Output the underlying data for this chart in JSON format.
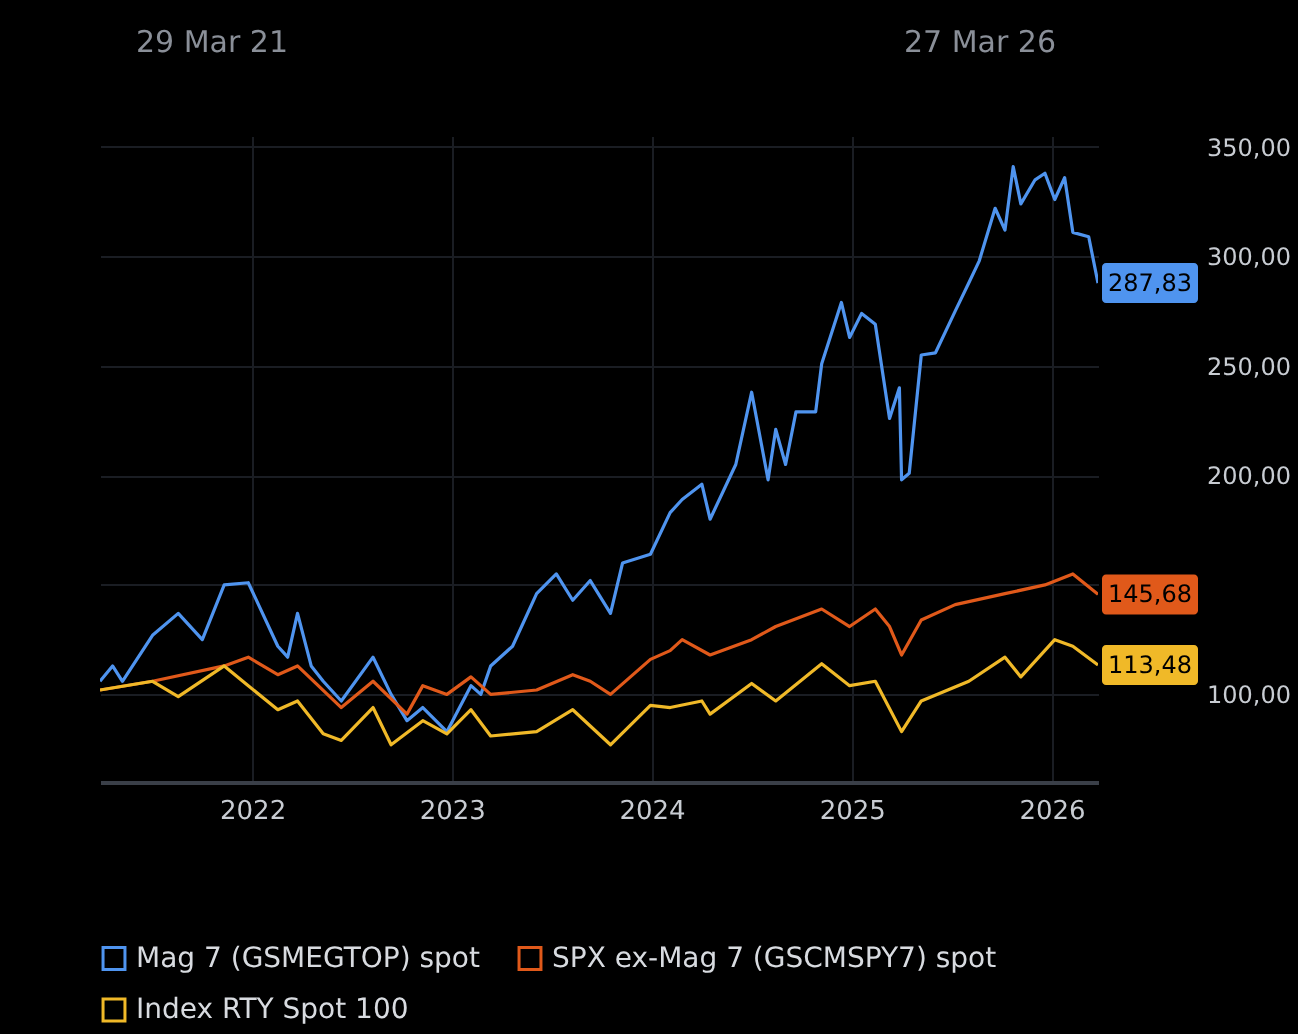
{
  "chart_data": {
    "type": "line",
    "annotations": [
      "29 Mar 21",
      "27 Mar 26"
    ],
    "xlim": [
      "2021-03-29",
      "2026-03-27"
    ],
    "xticks": [
      "2022",
      "2023",
      "2024",
      "2025",
      "2026"
    ],
    "ylim": [
      60,
      355
    ],
    "yticks": [
      {
        "value": 100,
        "label": "100,00"
      },
      {
        "value": 150,
        "label": null
      },
      {
        "value": 200,
        "label": "200,00"
      },
      {
        "value": 250,
        "label": "250,00"
      },
      {
        "value": 300,
        "label": "300,00"
      },
      {
        "value": 350,
        "label": "350,00"
      }
    ],
    "grid": true,
    "legend": "bottom",
    "marker": "none",
    "line_style": "solid",
    "series": [
      {
        "name": "Mag 7 (GSMEGTOP) spot",
        "color": "#4f94ef",
        "x": [
          "2021-03-29",
          "2021-04-21",
          "2021-05-09",
          "2021-07-03",
          "2021-08-19",
          "2021-10-02",
          "2021-11-11",
          "2021-12-25",
          "2022-02-17",
          "2022-03-07",
          "2022-03-25",
          "2022-04-19",
          "2022-05-11",
          "2022-06-13",
          "2022-08-10",
          "2022-09-12",
          "2022-10-11",
          "2022-11-09",
          "2022-12-23",
          "2023-02-05",
          "2023-02-23",
          "2023-03-13",
          "2023-04-22",
          "2023-06-05",
          "2023-07-11",
          "2023-08-10",
          "2023-09-11",
          "2023-10-18",
          "2023-11-09",
          "2023-12-30",
          "2024-02-04",
          "2024-02-26",
          "2024-04-02",
          "2024-04-17",
          "2024-06-03",
          "2024-07-02",
          "2024-08-01",
          "2024-08-15",
          "2024-09-02",
          "2024-09-21",
          "2024-10-27",
          "2024-11-07",
          "2024-12-13",
          "2024-12-28",
          "2025-01-19",
          "2025-02-13",
          "2025-03-11",
          "2025-03-29",
          "2025-04-02",
          "2025-04-16",
          "2025-05-08",
          "2025-06-03",
          "2025-07-09",
          "2025-08-03",
          "2025-08-22",
          "2025-09-20",
          "2025-10-08",
          "2025-10-23",
          "2025-11-06",
          "2025-12-02",
          "2025-12-20",
          "2026-01-07",
          "2026-01-25",
          "2026-02-09",
          "2026-03-10",
          "2026-03-27"
        ],
        "values": [
          106,
          113,
          106,
          127,
          137,
          125,
          150,
          151,
          122,
          117,
          137,
          113,
          106,
          97,
          117,
          100,
          88,
          94,
          83,
          104,
          100,
          113,
          122,
          146,
          155,
          143,
          152,
          137,
          160,
          164,
          183,
          189,
          196,
          180,
          205,
          238,
          198,
          221,
          205,
          229,
          229,
          251,
          279,
          263,
          274,
          269,
          226,
          240,
          198,
          201,
          255,
          256,
          275,
          288,
          298,
          322,
          312,
          341,
          324,
          335,
          338,
          326,
          336,
          311,
          309,
          287.83
        ],
        "value_labels": [
          null,
          null,
          null,
          null,
          null,
          null,
          null,
          null,
          null,
          null,
          null,
          null,
          null,
          null,
          null,
          null,
          null,
          null,
          null,
          null,
          null,
          null,
          null,
          null,
          null,
          null,
          null,
          null,
          null,
          null,
          null,
          null,
          null,
          null,
          null,
          null,
          null,
          null,
          null,
          null,
          null,
          null,
          null,
          null,
          null,
          null,
          null,
          null,
          null,
          null,
          null,
          null,
          null,
          null,
          null,
          null,
          null,
          null,
          null,
          null,
          null,
          null,
          null,
          null,
          null,
          "287,83"
        ]
      },
      {
        "name": "SPX ex-Mag 7 (GSCMSPY7) spot",
        "color": "#e0591a",
        "x": [
          "2021-03-29",
          "2021-07-03",
          "2021-11-11",
          "2021-12-25",
          "2022-02-17",
          "2022-03-25",
          "2022-06-13",
          "2022-08-10",
          "2022-10-11",
          "2022-11-09",
          "2022-12-23",
          "2023-02-05",
          "2023-03-13",
          "2023-06-05",
          "2023-08-10",
          "2023-09-11",
          "2023-10-18",
          "2023-12-30",
          "2024-02-04",
          "2024-02-26",
          "2024-04-17",
          "2024-07-02",
          "2024-08-15",
          "2024-11-07",
          "2024-12-28",
          "2025-02-13",
          "2025-03-11",
          "2025-04-02",
          "2025-05-08",
          "2025-07-09",
          "2025-10-08",
          "2025-12-20",
          "2026-02-09",
          "2026-03-27"
        ],
        "values": [
          102,
          106,
          113,
          117,
          109,
          113,
          94,
          106,
          91,
          104,
          100,
          108,
          100,
          102,
          109,
          106,
          100,
          116,
          120,
          125,
          118,
          125,
          131,
          139,
          131,
          139,
          131,
          118,
          134,
          141,
          146,
          150,
          155,
          145.68
        ],
        "value_labels": [
          null,
          null,
          null,
          null,
          null,
          null,
          null,
          null,
          null,
          null,
          null,
          null,
          null,
          null,
          null,
          null,
          null,
          null,
          null,
          null,
          null,
          null,
          null,
          null,
          null,
          null,
          null,
          null,
          null,
          null,
          null,
          null,
          null,
          "145,68"
        ]
      },
      {
        "name": "Index RTY Spot 100",
        "color": "#f0b928",
        "x": [
          "2021-03-29",
          "2021-07-03",
          "2021-08-19",
          "2021-11-11",
          "2021-12-25",
          "2022-02-17",
          "2022-03-25",
          "2022-05-11",
          "2022-06-13",
          "2022-08-10",
          "2022-09-12",
          "2022-11-09",
          "2022-12-23",
          "2023-02-05",
          "2023-03-13",
          "2023-06-05",
          "2023-08-10",
          "2023-10-18",
          "2023-12-30",
          "2024-02-04",
          "2024-04-02",
          "2024-04-17",
          "2024-07-02",
          "2024-08-15",
          "2024-11-07",
          "2024-12-28",
          "2025-02-13",
          "2025-04-02",
          "2025-05-08",
          "2025-08-03",
          "2025-10-08",
          "2025-11-06",
          "2026-01-07",
          "2026-02-09",
          "2026-03-27"
        ],
        "values": [
          102,
          106,
          99,
          113,
          104,
          93,
          97,
          82,
          79,
          94,
          77,
          88,
          82,
          93,
          81,
          83,
          93,
          77,
          95,
          94,
          97,
          91,
          105,
          97,
          114,
          104,
          106,
          83,
          97,
          106,
          117,
          108,
          125,
          122,
          113.48
        ],
        "value_labels": [
          null,
          null,
          null,
          null,
          null,
          null,
          null,
          null,
          null,
          null,
          null,
          null,
          null,
          null,
          null,
          null,
          null,
          null,
          null,
          null,
          null,
          null,
          null,
          null,
          null,
          null,
          null,
          null,
          null,
          null,
          null,
          null,
          null,
          null,
          "113,48"
        ]
      }
    ]
  }
}
